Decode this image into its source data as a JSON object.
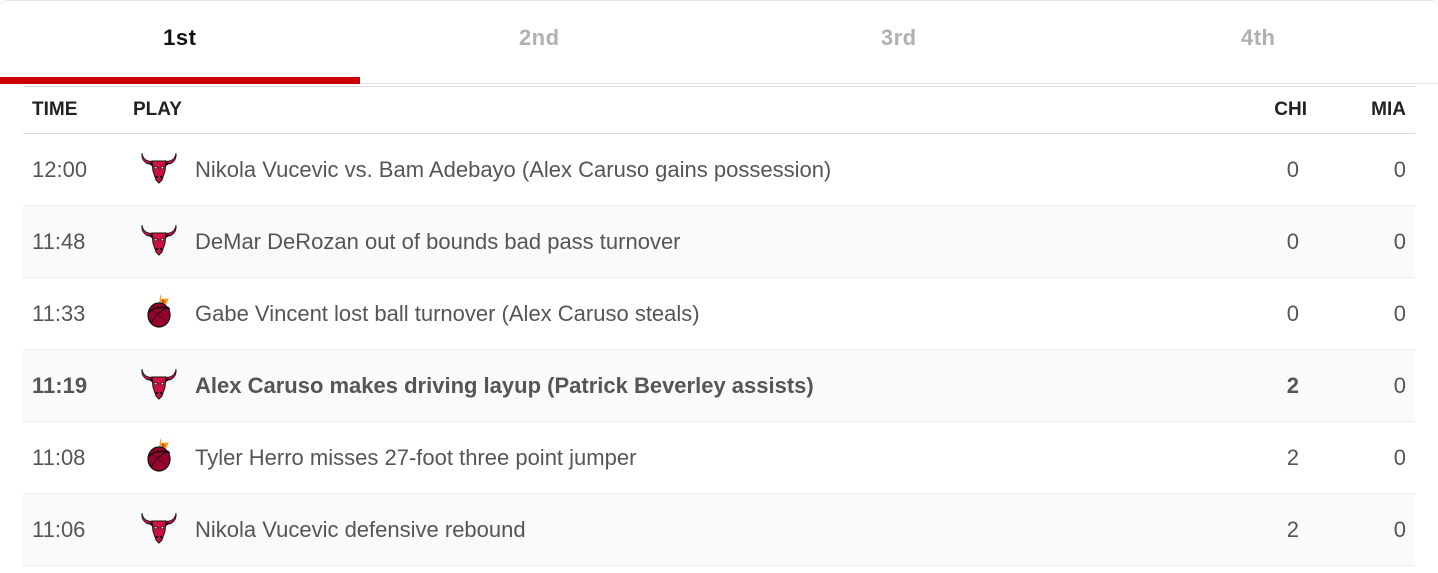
{
  "tabs": [
    {
      "label": "1st",
      "active": true
    },
    {
      "label": "2nd",
      "active": false
    },
    {
      "label": "3rd",
      "active": false
    },
    {
      "label": "4th",
      "active": false
    }
  ],
  "header": {
    "time": "TIME",
    "play": "PLAY",
    "chi": "CHI",
    "mia": "MIA"
  },
  "plays": [
    {
      "time": "12:00",
      "team_icon": "bulls-logo-icon",
      "text": "Nikola Vucevic vs. Bam Adebayo (Alex Caruso gains possession)",
      "chi": "0",
      "mia": "0",
      "scoring": false
    },
    {
      "time": "11:48",
      "team_icon": "bulls-logo-icon",
      "text": "DeMar DeRozan out of bounds bad pass turnover",
      "chi": "0",
      "mia": "0",
      "scoring": false
    },
    {
      "time": "11:33",
      "team_icon": "heat-logo-icon",
      "text": "Gabe Vincent lost ball turnover (Alex Caruso steals)",
      "chi": "0",
      "mia": "0",
      "scoring": false
    },
    {
      "time": "11:19",
      "team_icon": "bulls-logo-icon",
      "text": "Alex Caruso makes driving layup (Patrick Beverley assists)",
      "chi": "2",
      "mia": "0",
      "scoring": true
    },
    {
      "time": "11:08",
      "team_icon": "heat-logo-icon",
      "text": "Tyler Herro misses 27-foot three point jumper",
      "chi": "2",
      "mia": "0",
      "scoring": false
    },
    {
      "time": "11:06",
      "team_icon": "bulls-logo-icon",
      "text": "Nikola Vucevic defensive rebound",
      "chi": "2",
      "mia": "0",
      "scoring": false
    }
  ],
  "colors": {
    "accent": "#cc0000",
    "active_tab_text": "#111111",
    "inactive_tab_text": "#b0b0b0",
    "body_text": "#555555",
    "bulls_red": "#ce1141",
    "heat_red": "#98002e",
    "heat_black": "#1a1a1a",
    "heat_flame": "#f9a01b"
  }
}
